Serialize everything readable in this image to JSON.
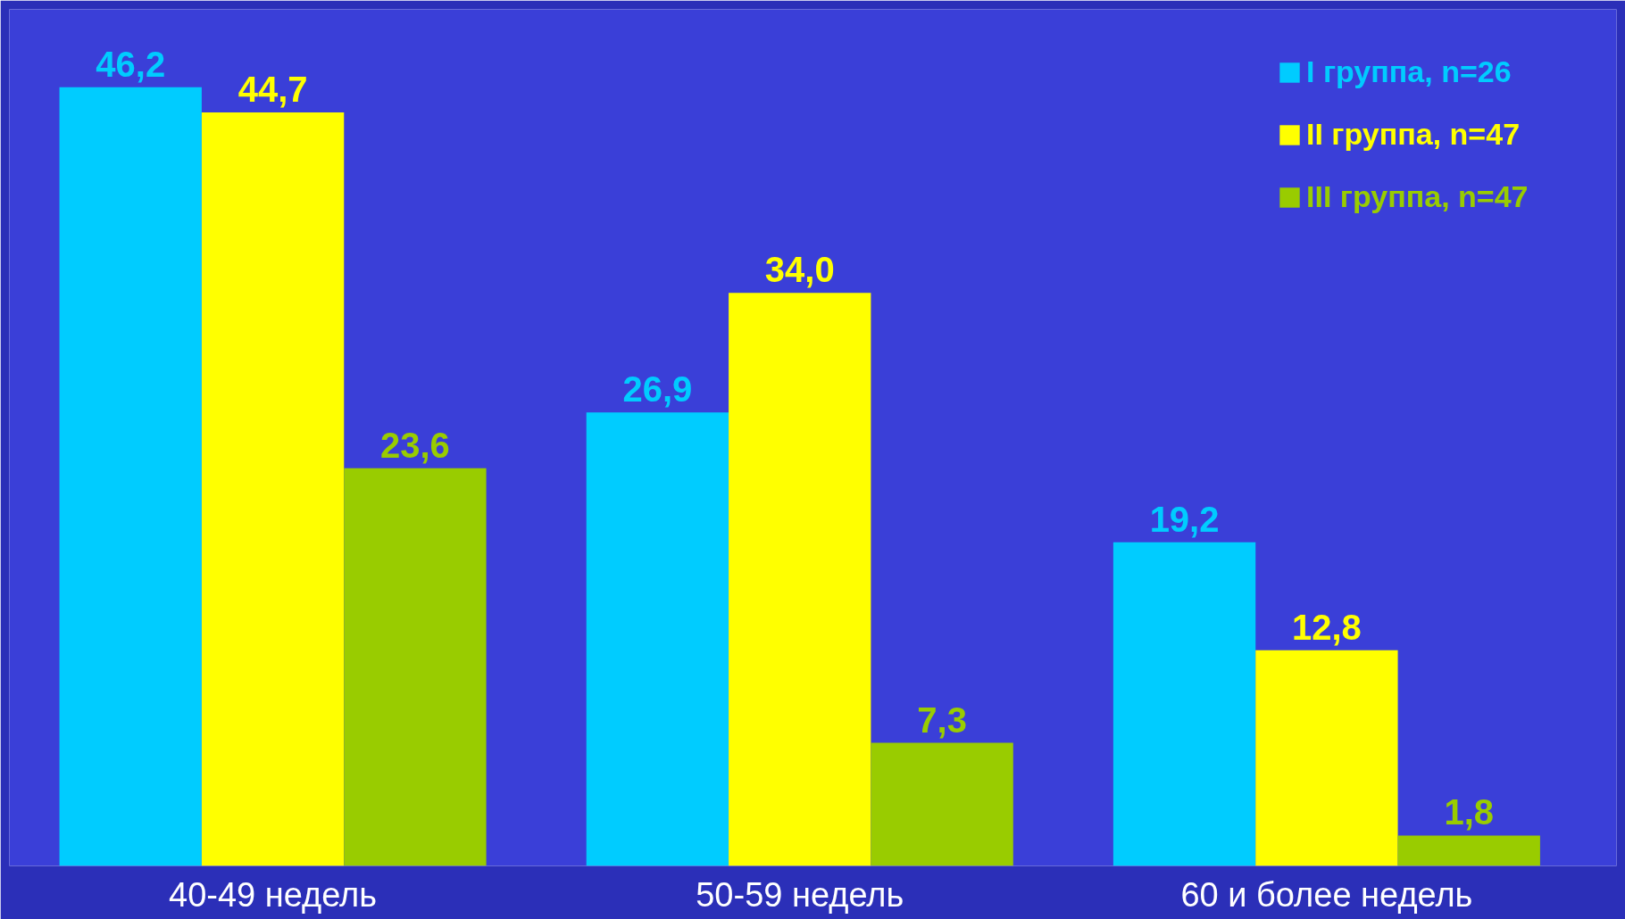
{
  "chart_data": {
    "type": "bar",
    "categories": [
      "40-49 недель",
      "50-59 недель",
      "60 и более недель"
    ],
    "series": [
      {
        "name": "I группа, n=26",
        "color": "#00ccff",
        "values": [
          46.2,
          26.9,
          19.2
        ],
        "value_labels": [
          "46,2",
          "26,9",
          "19,2"
        ]
      },
      {
        "name": "II группа, n=47",
        "color": "#ffff00",
        "values": [
          44.7,
          34.0,
          12.8
        ],
        "value_labels": [
          "44,7",
          "34,0",
          "12,8"
        ]
      },
      {
        "name": "III группа, n=47",
        "color": "#99cc00",
        "values": [
          23.6,
          7.3,
          1.8
        ],
        "value_labels": [
          "23,6",
          "7,3",
          "1,8"
        ]
      }
    ],
    "legend": "top right"
  }
}
